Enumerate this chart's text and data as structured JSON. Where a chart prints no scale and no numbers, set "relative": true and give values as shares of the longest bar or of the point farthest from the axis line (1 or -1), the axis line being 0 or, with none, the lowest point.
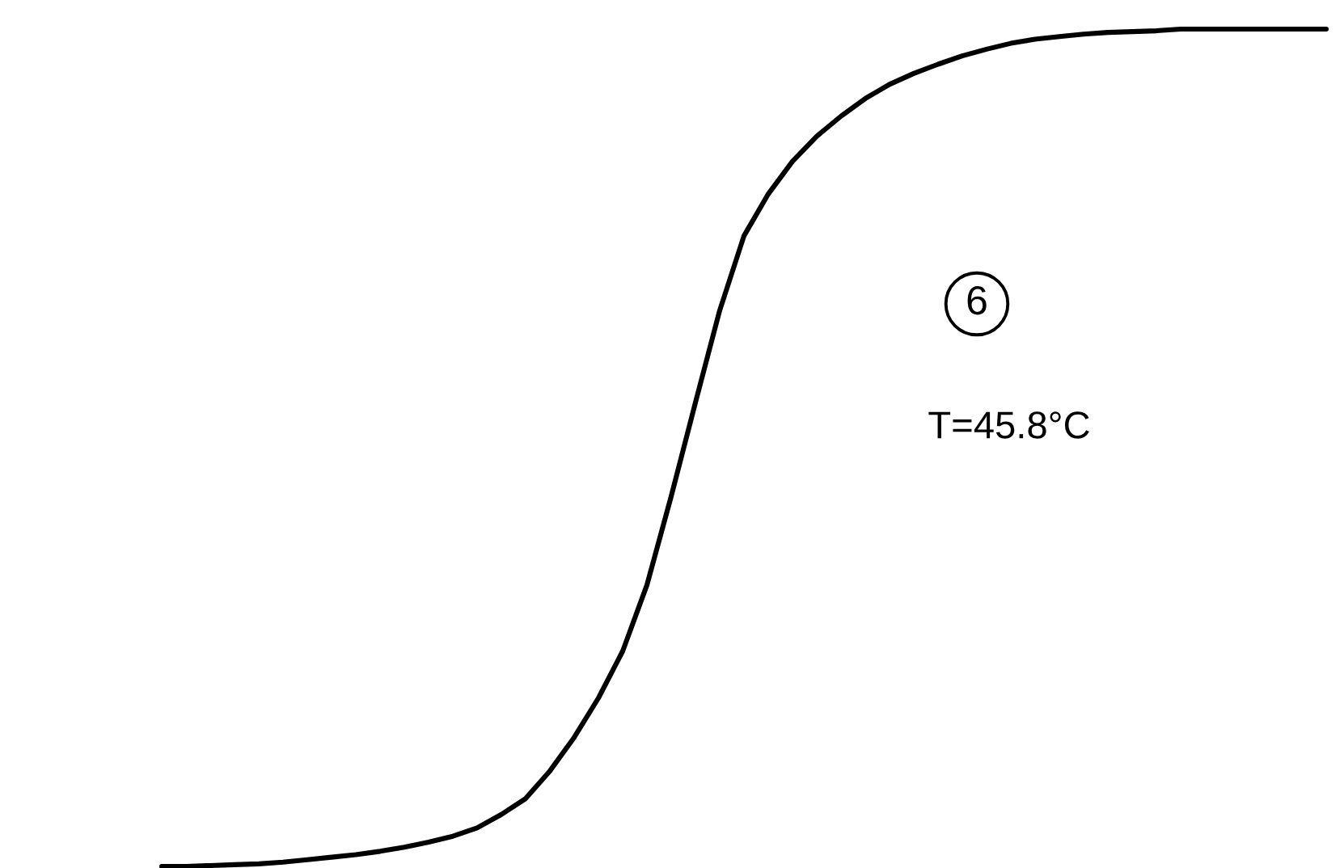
{
  "chart_data": {
    "type": "line",
    "relative": true,
    "annotations": [
      "6",
      "T=45.8°C"
    ],
    "categories": [
      null,
      null,
      null,
      null,
      null,
      null,
      null,
      null,
      null,
      null,
      null,
      null,
      null,
      null,
      null,
      null,
      null,
      null,
      null,
      null,
      null,
      null,
      null,
      null,
      null,
      null,
      null,
      null,
      null,
      null,
      null,
      null,
      null,
      null,
      null,
      null,
      null,
      null,
      null,
      null,
      null,
      null,
      null,
      null,
      null,
      null,
      null,
      null,
      null
    ],
    "series": [
      {
        "color": "#000000",
        "values": [
          0.0,
          0.0,
          0.001,
          0.002,
          0.003,
          0.005,
          0.008,
          0.011,
          0.014,
          0.018,
          0.023,
          0.029,
          0.036,
          0.046,
          0.062,
          0.081,
          0.114,
          0.154,
          0.201,
          0.257,
          0.336,
          0.442,
          0.554,
          0.664,
          0.753,
          0.803,
          0.842,
          0.872,
          0.896,
          0.917,
          0.934,
          0.947,
          0.958,
          0.968,
          0.976,
          0.983,
          0.988,
          0.991,
          0.994,
          0.996,
          0.997,
          0.998,
          1.0,
          1.0,
          1.0,
          1.0,
          1.0,
          1.0,
          1.0
        ]
      }
    ]
  }
}
